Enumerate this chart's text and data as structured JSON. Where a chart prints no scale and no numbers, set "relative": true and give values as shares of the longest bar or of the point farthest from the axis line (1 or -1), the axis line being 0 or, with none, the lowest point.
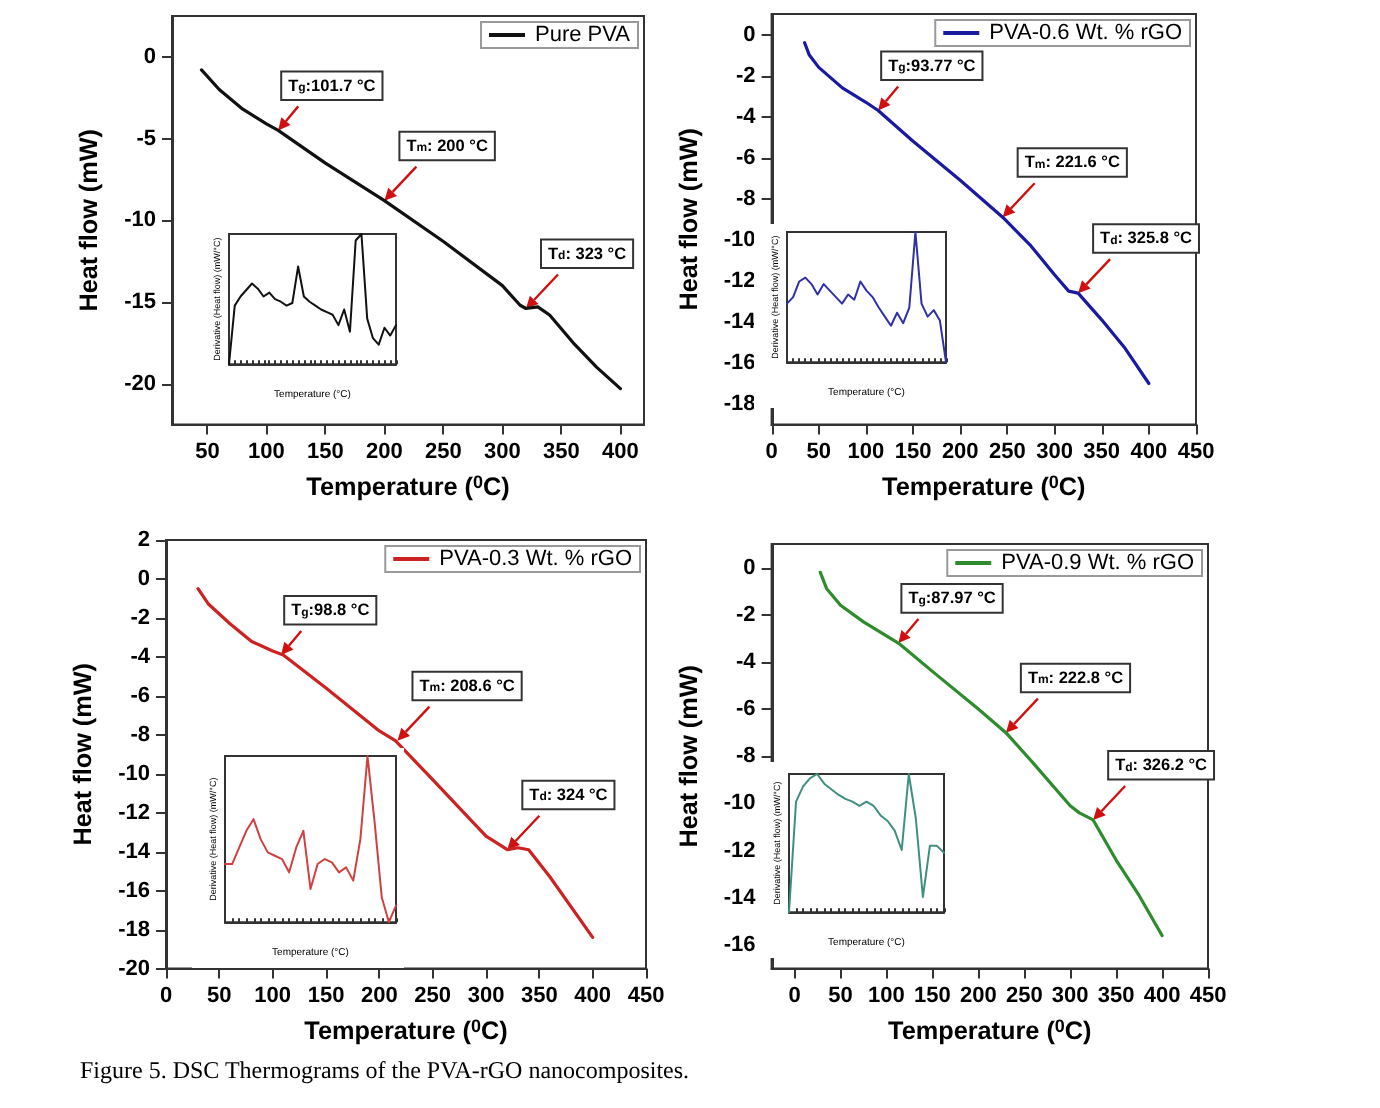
{
  "chart_data": [
    {
      "type": "line",
      "xlabel": "Temperature ($^{0}$C)",
      "ylabel": "Heat flow (mW)",
      "legend": "top right",
      "xlim": [
        20,
        420
      ],
      "xticks": [
        50,
        100,
        150,
        200,
        250,
        300,
        350,
        400
      ],
      "ylim": [
        -22.5,
        2.5
      ],
      "yticks": [
        -20,
        -15,
        -10,
        -5,
        0
      ],
      "x": [
        45,
        60,
        80,
        100,
        110,
        150,
        200,
        250,
        300,
        315,
        320,
        330,
        340,
        360,
        380,
        400
      ],
      "series": [
        {
          "name": "Pure PVA",
          "color": "#111111",
          "values": [
            -0.8,
            -2.0,
            -3.2,
            -4.1,
            -4.5,
            -6.5,
            -8.8,
            -11.3,
            -14.0,
            -15.2,
            -15.4,
            -15.3,
            -15.8,
            -17.5,
            -19.0,
            -20.3
          ]
        }
      ],
      "annotations": [
        {
          "text": "T$_{g}$:101.7 °C",
          "x": 110,
          "y": -4.5
        },
        {
          "text": "T$_{m}$: 200 °C",
          "x": 200,
          "y": -8.8
        },
        {
          "text": "T$_{d}$: 323 °C",
          "x": 320,
          "y": -15.4
        }
      ]
    },
    {
      "type": "line",
      "relative": true,
      "xlabel": "Temperature (°C)",
      "ylabel": "Derivative (Heat flow) (mW/°C)",
      "categories": [
        null,
        null,
        null,
        null,
        null,
        null,
        null,
        null,
        null,
        null,
        null,
        null,
        null,
        null,
        null,
        null,
        null,
        null,
        null,
        null,
        null,
        null,
        null,
        null,
        null,
        null,
        null,
        null,
        null,
        null
      ],
      "series": [
        {
          "color": "#111111",
          "values": [
            0,
            0.45,
            0.52,
            0.57,
            0.62,
            0.58,
            0.52,
            0.55,
            0.5,
            0.48,
            0.45,
            0.47,
            0.75,
            0.52,
            0.48,
            0.45,
            0.42,
            0.4,
            0.38,
            0.3,
            0.42,
            0.25,
            0.95,
            1.0,
            0.35,
            0.2,
            0.15,
            0.28,
            0.22,
            0.3
          ]
        }
      ]
    },
    {
      "type": "line",
      "xlabel": "Temperature ($^{0}$C)",
      "ylabel": "Heat flow (mW)",
      "legend": "top right",
      "xlim": [
        0,
        450
      ],
      "xticks": [
        0,
        50,
        100,
        150,
        200,
        250,
        300,
        350,
        400,
        450
      ],
      "ylim": [
        -19,
        1
      ],
      "yticks": [
        -18,
        -16,
        -14,
        -12,
        -10,
        -8,
        -6,
        -4,
        -2,
        0
      ],
      "x": [
        35,
        40,
        50,
        75,
        100,
        113,
        150,
        200,
        245,
        275,
        300,
        315,
        325,
        350,
        375,
        400
      ],
      "series": [
        {
          "name": "PVA-0.6 Wt. % rGO",
          "color": "#1a1aa0",
          "values": [
            -0.4,
            -1.0,
            -1.6,
            -2.6,
            -3.3,
            -3.7,
            -5.2,
            -7.1,
            -8.9,
            -10.3,
            -11.7,
            -12.5,
            -12.6,
            -13.9,
            -15.3,
            -17.0
          ]
        }
      ],
      "annotations": [
        {
          "text": "T$_{g}$:93.77 °C",
          "x": 113,
          "y": -3.7
        },
        {
          "text": "T$_{m}$: 221.6 °C",
          "x": 245,
          "y": -8.9
        },
        {
          "text": "T$_{d}$: 325.8 °C",
          "x": 325,
          "y": -12.6
        }
      ]
    },
    {
      "type": "line",
      "relative": true,
      "xlabel": "Temperature (°C)",
      "ylabel": "Derivative (Heat flow) (mW/°C)",
      "categories": [
        null,
        null,
        null,
        null,
        null,
        null,
        null,
        null,
        null,
        null,
        null,
        null,
        null,
        null,
        null,
        null,
        null,
        null,
        null,
        null,
        null,
        null,
        null,
        null,
        null,
        null,
        null
      ],
      "series": [
        {
          "color": "#3030a8",
          "values": [
            0.45,
            0.5,
            0.62,
            0.65,
            0.6,
            0.52,
            0.6,
            0.55,
            0.5,
            0.45,
            0.52,
            0.48,
            0.62,
            0.55,
            0.5,
            0.42,
            0.35,
            0.28,
            0.38,
            0.3,
            0.42,
            1.0,
            0.45,
            0.35,
            0.4,
            0.32,
            0
          ]
        }
      ]
    },
    {
      "type": "line",
      "xlabel": "Temperature ($^{0}$C)",
      "ylabel": "Heat flow (mW)",
      "legend": "top right",
      "xlim": [
        0,
        450
      ],
      "xticks": [
        0,
        50,
        100,
        150,
        200,
        250,
        300,
        350,
        400,
        450
      ],
      "ylim": [
        -20,
        2
      ],
      "yticks": [
        -20,
        -18,
        -16,
        -14,
        -12,
        -10,
        -8,
        -6,
        -4,
        -2,
        0,
        2
      ],
      "x": [
        30,
        40,
        60,
        80,
        100,
        110,
        150,
        200,
        215,
        250,
        300,
        320,
        330,
        340,
        360,
        400
      ],
      "series": [
        {
          "name": "PVA-0.3 Wt. % rGO",
          "color": "#cc2222",
          "values": [
            -0.5,
            -1.3,
            -2.3,
            -3.2,
            -3.7,
            -3.9,
            -5.6,
            -7.8,
            -8.3,
            -10.3,
            -13.2,
            -13.9,
            -13.8,
            -13.9,
            -15.3,
            -18.4
          ]
        }
      ],
      "annotations": [
        {
          "text": "T$_{g}$:98.8 °C",
          "x": 108,
          "y": -3.9
        },
        {
          "text": "T$_{m}$: 208.6 °C",
          "x": 217,
          "y": -8.3
        },
        {
          "text": "T$_{d}$: 324 °C",
          "x": 320,
          "y": -13.9
        }
      ]
    },
    {
      "type": "line",
      "relative": true,
      "xlabel": "Temperature (°C)",
      "ylabel": "Derivative (Heat flow) (mW/°C)",
      "categories": [
        null,
        null,
        null,
        null,
        null,
        null,
        null,
        null,
        null,
        null,
        null,
        null,
        null,
        null,
        null,
        null,
        null,
        null,
        null,
        null,
        null,
        null,
        null,
        null,
        null
      ],
      "series": [
        {
          "color": "#d04040",
          "values": [
            0.35,
            0.35,
            0.45,
            0.55,
            0.62,
            0.5,
            0.42,
            0.4,
            0.38,
            0.3,
            0.45,
            0.55,
            0.2,
            0.35,
            0.38,
            0.36,
            0.3,
            0.33,
            0.25,
            0.5,
            1.0,
            0.6,
            0.15,
            0,
            0.1
          ]
        }
      ]
    },
    {
      "type": "line",
      "xlabel": "Temperature ($^{0}$C)",
      "ylabel": "Heat flow (mW)",
      "legend": "top right",
      "xlim": [
        -25,
        450
      ],
      "xticks": [
        0,
        50,
        100,
        150,
        200,
        250,
        300,
        350,
        400,
        450
      ],
      "ylim": [
        -17,
        1
      ],
      "yticks": [
        -16,
        -14,
        -12,
        -10,
        -8,
        -6,
        -4,
        -2,
        0
      ],
      "x": [
        28,
        35,
        50,
        75,
        100,
        113,
        150,
        200,
        230,
        260,
        300,
        310,
        325,
        350,
        375,
        400
      ],
      "series": [
        {
          "name": "PVA-0.9 Wt. % rGO",
          "color": "#2e8b2e",
          "values": [
            -0.2,
            -0.9,
            -1.6,
            -2.3,
            -2.9,
            -3.2,
            -4.4,
            -6.0,
            -7.0,
            -8.3,
            -10.1,
            -10.4,
            -10.7,
            -12.4,
            -13.9,
            -15.6
          ]
        }
      ],
      "annotations": [
        {
          "text": "T$_{g}$:87.97 °C",
          "x": 113,
          "y": -3.2
        },
        {
          "text": "T$_{m}$: 222.8 °C",
          "x": 230,
          "y": -7.0
        },
        {
          "text": "T$_{d}$: 326.2 °C",
          "x": 325,
          "y": -10.7
        }
      ]
    },
    {
      "type": "line",
      "relative": true,
      "xlabel": "Temperature (°C)",
      "ylabel": "Derivative (Heat flow) (mW/°C)",
      "categories": [
        null,
        null,
        null,
        null,
        null,
        null,
        null,
        null,
        null,
        null,
        null,
        null,
        null,
        null,
        null,
        null,
        null,
        null,
        null,
        null,
        null,
        null,
        null
      ],
      "series": [
        {
          "color": "#3f8f80",
          "values": [
            0,
            0.8,
            0.91,
            0.97,
            1,
            0.93,
            0.89,
            0.85,
            0.82,
            0.8,
            0.77,
            0.8,
            0.77,
            0.7,
            0.66,
            0.59,
            0.45,
            1,
            0.68,
            0.11,
            0.48,
            0.48,
            0.43
          ]
        }
      ]
    },
    {
      "type": "other",
      "annotations": [
        "Figure 5. DSC Thermograms of the PVA-rGO nanocomposites."
      ]
    }
  ]
}
